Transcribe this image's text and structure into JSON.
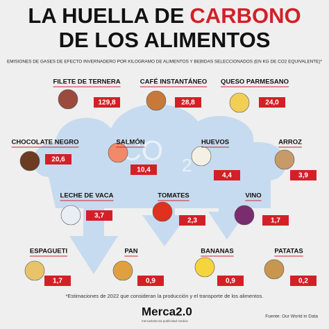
{
  "title": {
    "line1": "LA HUELLA DE",
    "highlight": "CARBONO",
    "line2": "DE LOS ALIMENTOS"
  },
  "subtitle": "EMISIONES DE GASES DE EFECTO INVERNADERO POR KILOGRAMO DE ALIMENTOS Y BEBIDAS SELECCIONADOS (EN KG DE CO2 EQUIVALENTE)*",
  "cloud": {
    "main": "CO",
    "sub": "2"
  },
  "items": [
    {
      "name": "FILETE DE TERNERA",
      "value": "129,8"
    },
    {
      "name": "CAFÉ INSTANTÁNEO",
      "value": "28,8"
    },
    {
      "name": "QUESO PARMESANO",
      "value": "24,0"
    },
    {
      "name": "CHOCOLATE NEGRO",
      "value": "20,6"
    },
    {
      "name": "SALMÓN",
      "value": "10,4"
    },
    {
      "name": "HUEVOS",
      "value": "4,4"
    },
    {
      "name": "ARROZ",
      "value": "3,9"
    },
    {
      "name": "LECHE DE VACA",
      "value": "3,7"
    },
    {
      "name": "TOMATES",
      "value": "2,3"
    },
    {
      "name": "VINO",
      "value": "1,7"
    },
    {
      "name": "ESPAGUETI",
      "value": "1,7"
    },
    {
      "name": "PAN",
      "value": "0,9"
    },
    {
      "name": "BANANAS",
      "value": "0,9"
    },
    {
      "name": "PATATAS",
      "value": "0,2"
    }
  ],
  "note": "*Estimaciones de 2022 que consideran la producción y el transporte de los alimentos.",
  "logo": {
    "name": "Merca2.0",
    "tagline": "mercadotecnia publicidad medios"
  },
  "source": "Fuente: Our World in Data"
}
